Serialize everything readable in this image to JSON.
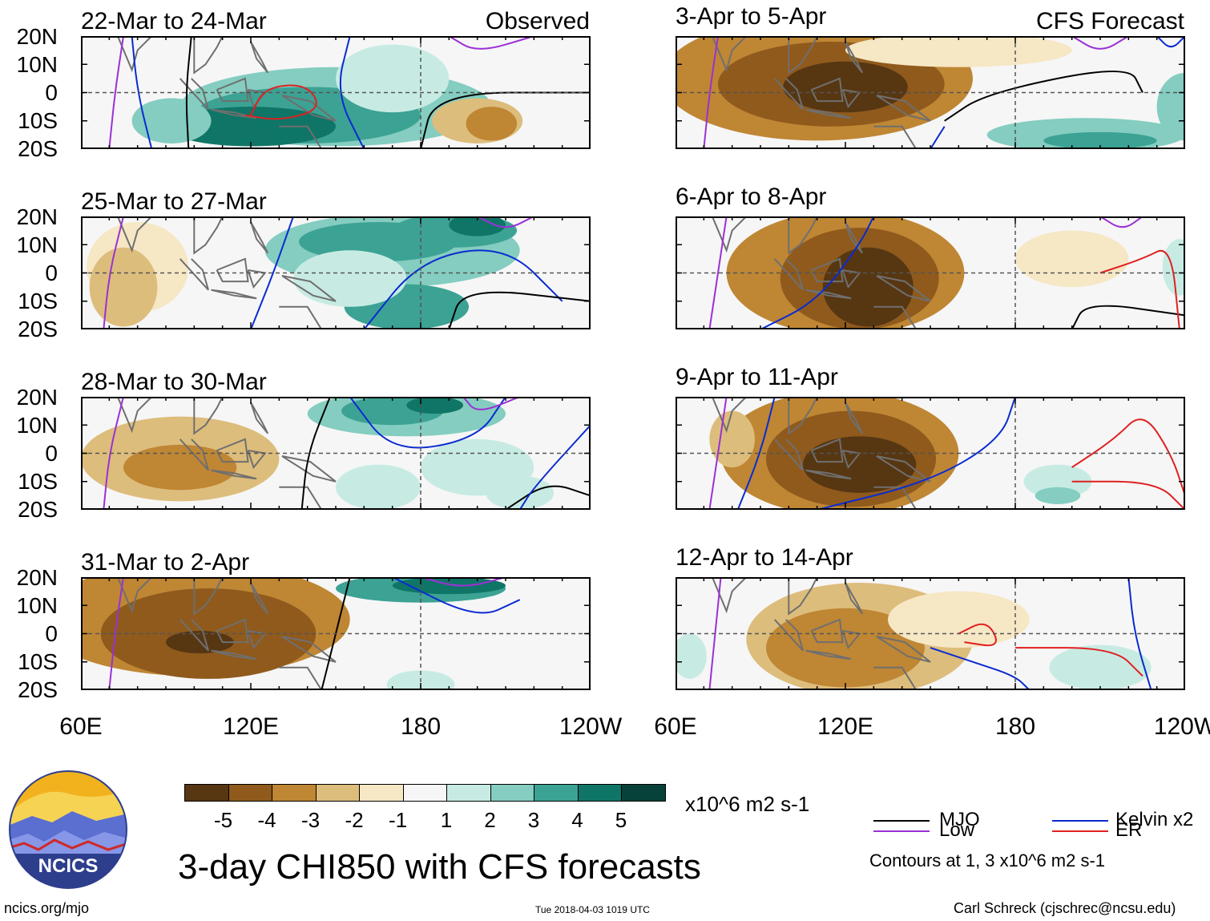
{
  "chart_data": {
    "type": "heatmap",
    "title": "3-day CHI850 with CFS forecasts",
    "units": "x10^6 m2 s-1",
    "observed_label": "Observed",
    "forecast_label": "CFS Forecast",
    "lat_ticks": [
      "20N",
      "10N",
      "0",
      "10S",
      "20S"
    ],
    "lon_ticks": [
      "60E",
      "120E",
      "180",
      "120W"
    ],
    "panels": [
      {
        "title": "22-Mar to 24-Mar",
        "kind": "observed"
      },
      {
        "title": "25-Mar to 27-Mar",
        "kind": "observed"
      },
      {
        "title": "28-Mar to 30-Mar",
        "kind": "observed"
      },
      {
        "title": "31-Mar to 2-Apr",
        "kind": "observed"
      },
      {
        "title": "3-Apr to 5-Apr",
        "kind": "forecast"
      },
      {
        "title": "6-Apr to 8-Apr",
        "kind": "forecast"
      },
      {
        "title": "9-Apr to 11-Apr",
        "kind": "forecast"
      },
      {
        "title": "12-Apr to 14-Apr",
        "kind": "forecast"
      }
    ],
    "colorbar": {
      "ticks": [
        "-5",
        "-4",
        "-3",
        "-2",
        "-1",
        "1",
        "2",
        "3",
        "4",
        "5"
      ],
      "colors": [
        "#573612",
        "#8f5a1c",
        "#bf8634",
        "#ddbd7c",
        "#f6e7c5",
        "#f6f6f6",
        "#c7ebe3",
        "#84cdc0",
        "#3ca294",
        "#0f7567",
        "#07423a"
      ]
    },
    "legend": [
      {
        "name": "MJO",
        "color": "#000000"
      },
      {
        "name": "Kelvin x2",
        "color": "#0a2bd1"
      },
      {
        "name": "Low",
        "color": "#9b30d6"
      },
      {
        "name": "ER",
        "color": "#e02020"
      }
    ],
    "contour_note": "Contours at 1, 3 x10^6 m2 s-1"
  },
  "footer": {
    "logo_text": "NCICS",
    "site": "ncics.org/mjo",
    "timestamp": "Tue 2018-04-03 1019 UTC",
    "author": "Carl Schreck (cjschrec@ncsu.edu)"
  }
}
